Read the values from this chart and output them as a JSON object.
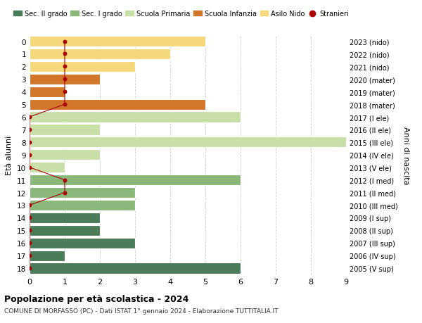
{
  "ages": [
    18,
    17,
    16,
    15,
    14,
    13,
    12,
    11,
    10,
    9,
    8,
    7,
    6,
    5,
    4,
    3,
    2,
    1,
    0
  ],
  "years": [
    "2005 (V sup)",
    "2006 (IV sup)",
    "2007 (III sup)",
    "2008 (II sup)",
    "2009 (I sup)",
    "2010 (III med)",
    "2011 (II med)",
    "2012 (I med)",
    "2013 (V ele)",
    "2014 (IV ele)",
    "2015 (III ele)",
    "2016 (II ele)",
    "2017 (I ele)",
    "2018 (mater)",
    "2019 (mater)",
    "2020 (mater)",
    "2021 (nido)",
    "2022 (nido)",
    "2023 (nido)"
  ],
  "values": [
    6,
    1,
    3,
    2,
    2,
    3,
    3,
    6,
    1,
    2,
    9,
    2,
    6,
    5,
    1,
    2,
    3,
    4,
    5
  ],
  "bar_colors": [
    "#4a7c59",
    "#4a7c59",
    "#4a7c59",
    "#4a7c59",
    "#4a7c59",
    "#8ab87a",
    "#8ab87a",
    "#8ab87a",
    "#c8dfa8",
    "#c8dfa8",
    "#c8dfa8",
    "#c8dfa8",
    "#c8dfa8",
    "#d2762a",
    "#d2762a",
    "#d2762a",
    "#f5d87a",
    "#f5d87a",
    "#f5d87a"
  ],
  "stranieri_x": [
    0,
    0,
    0,
    0,
    0,
    0,
    1,
    1,
    0,
    0,
    0,
    0,
    0,
    1,
    1,
    1,
    1,
    1,
    1
  ],
  "stranieri_color": "#aa0000",
  "legend_labels": [
    "Sec. II grado",
    "Sec. I grado",
    "Scuola Primaria",
    "Scuola Infanzia",
    "Asilo Nido",
    "Stranieri"
  ],
  "legend_colors": [
    "#4a7c59",
    "#8ab87a",
    "#c8dfa8",
    "#d2762a",
    "#f5d87a",
    "#aa0000"
  ],
  "title": "Popolazione per età scolastica - 2024",
  "subtitle": "COMUNE DI MORFASSO (PC) - Dati ISTAT 1° gennaio 2024 - Elaborazione TUTTITALIA.IT",
  "ylabel_left": "Età alunni",
  "ylabel_right": "Anni di nascita",
  "xlim": [
    0,
    9
  ],
  "background_color": "#ffffff",
  "grid_color": "#cccccc"
}
